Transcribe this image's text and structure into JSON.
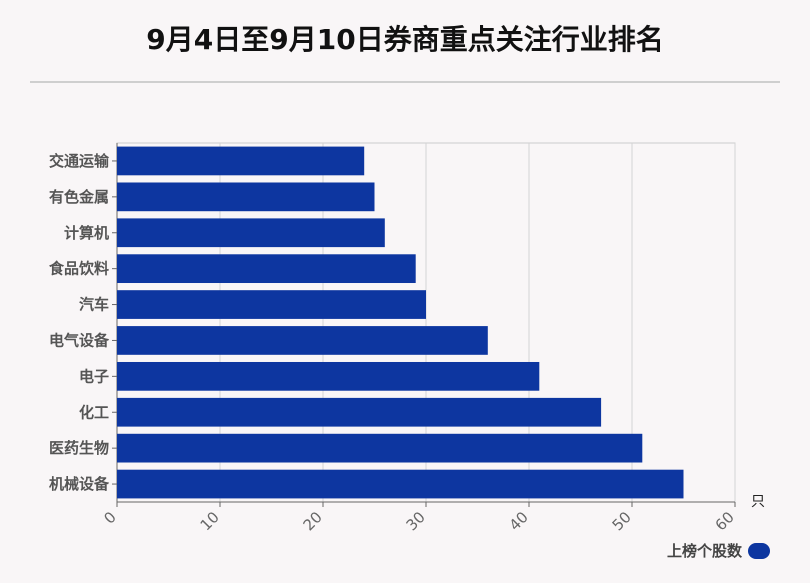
{
  "title": "9月4日至9月10日券商重点关注行业排名",
  "chart_data": {
    "type": "bar",
    "orientation": "horizontal",
    "categories": [
      "交通运输",
      "有色金属",
      "计算机",
      "食品饮料",
      "汽车",
      "电气设备",
      "电子",
      "化工",
      "医药生物",
      "机械设备"
    ],
    "series": [
      {
        "name": "上榜个股数",
        "values": [
          24,
          25,
          26,
          29,
          30,
          36,
          41,
          47,
          51,
          55
        ]
      }
    ],
    "x_ticks": [
      "0",
      "10",
      "20",
      "30",
      "40",
      "50",
      "60"
    ],
    "xlim": [
      0,
      60
    ],
    "unit_label": "只",
    "legend_position": "bottom-right",
    "grid": true,
    "colors": {
      "bar": "#0d36a0"
    }
  },
  "legend": {
    "label": "上榜个股数"
  }
}
